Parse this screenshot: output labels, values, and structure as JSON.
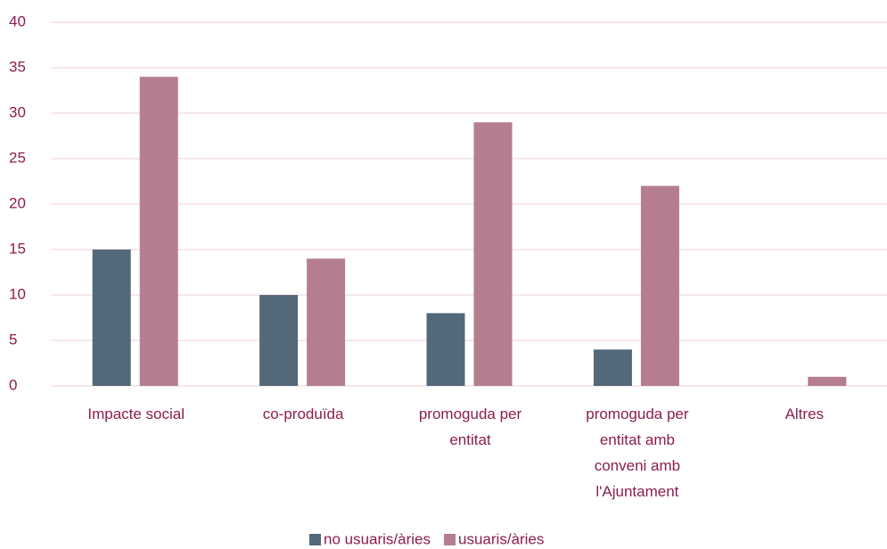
{
  "chart_data": {
    "type": "bar",
    "categories": [
      "Impacte social",
      "co-produïda",
      "promoguda per entitat",
      "promoguda per entitat amb conveni amb l'Ajuntament",
      "Altres"
    ],
    "series": [
      {
        "name": "no usuaris/àries",
        "color": "#536878",
        "values": [
          15,
          10,
          8,
          4,
          0
        ]
      },
      {
        "name": "usuaris/àries",
        "color": "#b57e8f",
        "values": [
          34,
          14,
          29,
          22,
          1
        ]
      }
    ],
    "ylim": [
      0,
      40
    ],
    "yticks": [
      0,
      5,
      10,
      15,
      20,
      25,
      30,
      35,
      40
    ],
    "grid": true,
    "legend": "bottom"
  }
}
